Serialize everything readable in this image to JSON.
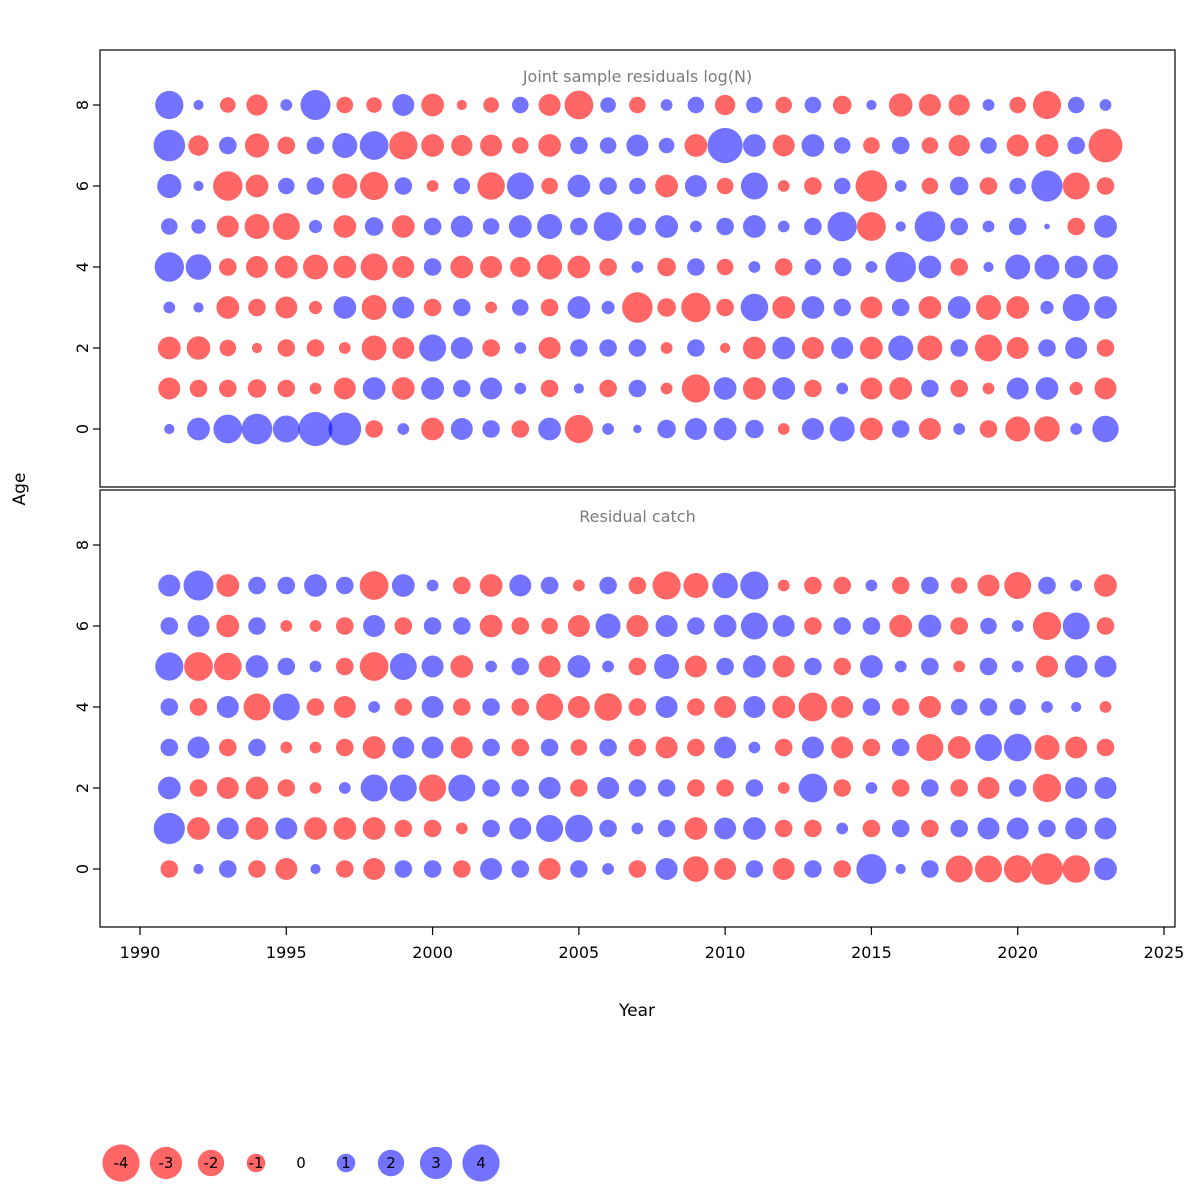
{
  "figure": {
    "xlabel": "Year",
    "ylabel": "Age",
    "x_ticks": [
      1990,
      1995,
      2000,
      2005,
      2010,
      2015,
      2020,
      2025
    ],
    "y_ticks": [
      0,
      2,
      4,
      6,
      8
    ],
    "legend_values": [
      -4,
      -3,
      -2,
      -1,
      0,
      1,
      2,
      3,
      4
    ],
    "colors": {
      "negative": "#ff0000",
      "positive": "#0000ff",
      "negative_opacity": 0.6,
      "positive_opacity": 0.55,
      "title_color": "#7c7c7c",
      "axis_color": "#000000"
    }
  },
  "chart_data": [
    {
      "type": "scatter",
      "subtype": "bubble-residuals",
      "title": "Joint sample residuals log(N)",
      "xlabel": "Year",
      "ylabel": "Age",
      "xlim": [
        1988.6,
        2025.4
      ],
      "ylim": [
        -1.4,
        9.3
      ],
      "grid": false,
      "years": [
        1991,
        1992,
        1993,
        1994,
        1995,
        1996,
        1997,
        1998,
        1999,
        2000,
        2001,
        2002,
        2003,
        2004,
        2005,
        2006,
        2007,
        2008,
        2009,
        2010,
        2011,
        2012,
        2013,
        2014,
        2015,
        2016,
        2017,
        2018,
        2019,
        2020,
        2021,
        2022,
        2023
      ],
      "series": [
        {
          "age": 8,
          "values": [
            2.3,
            0.3,
            -0.7,
            -1.3,
            0.4,
            2.6,
            -0.8,
            -0.7,
            1.4,
            -1.5,
            -0.3,
            -0.7,
            0.8,
            -1.4,
            -2.4,
            0.7,
            -0.8,
            0.4,
            0.8,
            -1.2,
            0.8,
            -0.8,
            0.8,
            -1.0,
            0.3,
            -1.6,
            -1.4,
            -1.3,
            0.4,
            -0.8,
            -2.3,
            0.8,
            0.4
          ]
        },
        {
          "age": 7,
          "values": [
            2.9,
            -1.2,
            0.9,
            -1.7,
            -0.9,
            0.9,
            1.8,
            2.4,
            -2.3,
            -1.5,
            -1.3,
            -1.4,
            -0.8,
            -1.5,
            0.9,
            0.8,
            1.4,
            0.7,
            -1.5,
            3.6,
            1.5,
            -1.4,
            1.5,
            0.8,
            -0.8,
            0.9,
            -0.8,
            -1.3,
            0.8,
            -1.4,
            -1.5,
            0.9,
            -3.3
          ]
        },
        {
          "age": 6,
          "values": [
            1.7,
            0.3,
            -2.5,
            -1.5,
            0.8,
            0.9,
            -1.8,
            -2.3,
            0.9,
            -0.4,
            0.8,
            -2.2,
            2.1,
            -0.8,
            1.5,
            0.9,
            0.8,
            -1.5,
            1.4,
            -0.8,
            2.1,
            -0.4,
            -0.9,
            0.8,
            -2.9,
            0.4,
            -0.8,
            1.0,
            -0.9,
            0.8,
            2.8,
            -2.1,
            -0.9
          ]
        },
        {
          "age": 5,
          "values": [
            0.8,
            0.6,
            -1.4,
            -1.8,
            -2.1,
            0.5,
            -1.5,
            1.0,
            -1.5,
            0.9,
            1.4,
            0.8,
            1.5,
            1.8,
            0.9,
            2.4,
            0.9,
            1.5,
            0.4,
            0.9,
            1.5,
            0.4,
            0.9,
            2.5,
            -2.4,
            0.3,
            2.7,
            0.9,
            0.4,
            0.9,
            0.1,
            -0.9,
            1.5
          ]
        },
        {
          "age": 4,
          "values": [
            2.5,
            1.9,
            -0.9,
            -1.4,
            -1.5,
            -1.8,
            -1.5,
            -2.1,
            -1.4,
            0.9,
            -1.5,
            -1.4,
            -1.2,
            -1.8,
            -1.5,
            -0.9,
            0.4,
            -1.0,
            0.9,
            -0.8,
            0.4,
            -0.9,
            0.8,
            1.0,
            0.4,
            2.7,
            1.5,
            -0.9,
            0.3,
            1.8,
            1.8,
            1.5,
            1.8
          ]
        },
        {
          "age": 3,
          "values": [
            0.4,
            0.3,
            -1.5,
            -0.9,
            -1.4,
            -0.5,
            1.5,
            -1.8,
            1.4,
            -0.9,
            0.9,
            -0.4,
            0.8,
            -0.9,
            1.5,
            0.5,
            -2.7,
            -1.0,
            -2.5,
            -0.9,
            2.2,
            -1.5,
            1.5,
            0.9,
            -1.4,
            0.9,
            -1.5,
            1.5,
            -1.8,
            -1.5,
            0.5,
            2.1,
            1.5
          ]
        },
        {
          "age": 2,
          "values": [
            -1.5,
            -1.6,
            -0.8,
            -0.3,
            -0.9,
            -0.9,
            -0.4,
            -1.8,
            -1.4,
            2.1,
            1.4,
            -0.9,
            0.4,
            -1.4,
            0.9,
            0.9,
            0.9,
            -0.4,
            0.9,
            -0.3,
            -1.5,
            1.5,
            -1.4,
            1.4,
            -1.5,
            1.8,
            -1.8,
            0.9,
            -2.1,
            -1.4,
            0.9,
            1.4,
            -0.9
          ]
        },
        {
          "age": 1,
          "values": [
            -1.4,
            -0.9,
            -0.9,
            -1.0,
            -0.9,
            -0.4,
            -1.4,
            1.5,
            -1.5,
            1.5,
            0.9,
            1.4,
            0.4,
            -0.9,
            0.3,
            -0.9,
            0.9,
            -0.4,
            -2.3,
            1.5,
            -1.5,
            1.5,
            -0.9,
            0.4,
            -1.4,
            -1.5,
            0.9,
            -0.9,
            -0.4,
            1.4,
            1.5,
            -0.5,
            -1.4
          ]
        },
        {
          "age": 0,
          "values": [
            0.3,
            1.5,
            2.4,
            2.7,
            2.1,
            3.4,
            3.1,
            -0.9,
            0.4,
            -1.5,
            1.4,
            0.9,
            -0.9,
            1.5,
            -2.3,
            0.4,
            0.2,
            1.0,
            1.4,
            1.5,
            1.0,
            -0.4,
            1.4,
            1.8,
            -1.5,
            0.9,
            -1.4,
            0.4,
            -0.9,
            -1.8,
            -1.9,
            0.4,
            2.0
          ]
        }
      ]
    },
    {
      "type": "scatter",
      "subtype": "bubble-residuals",
      "title": "Residual catch",
      "xlabel": "Year",
      "ylabel": "Age",
      "xlim": [
        1988.6,
        2025.4
      ],
      "ylim": [
        -1.4,
        9.3
      ],
      "grid": false,
      "years": [
        1991,
        1992,
        1993,
        1994,
        1995,
        1996,
        1997,
        1998,
        1999,
        2000,
        2001,
        2002,
        2003,
        2004,
        2005,
        2006,
        2007,
        2008,
        2009,
        2010,
        2011,
        2012,
        2013,
        2014,
        2015,
        2016,
        2017,
        2018,
        2019,
        2020,
        2021,
        2022,
        2023
      ],
      "series": [
        {
          "age": 7,
          "values": [
            1.4,
            2.6,
            -1.5,
            0.9,
            0.9,
            1.5,
            0.9,
            -2.4,
            1.5,
            0.4,
            -0.9,
            -1.5,
            1.4,
            0.9,
            -0.4,
            0.9,
            -0.9,
            -2.3,
            -1.8,
            1.9,
            2.3,
            -0.4,
            -0.9,
            -0.9,
            0.4,
            -0.9,
            0.9,
            -0.8,
            -1.4,
            -2.1,
            0.9,
            0.4,
            -1.5
          ]
        },
        {
          "age": 6,
          "values": [
            0.9,
            1.4,
            -1.5,
            0.9,
            -0.4,
            -0.4,
            -0.9,
            1.4,
            -0.9,
            0.9,
            0.9,
            -1.5,
            -0.9,
            -0.8,
            -1.4,
            1.8,
            -1.4,
            1.4,
            0.9,
            1.5,
            2.1,
            1.4,
            -0.9,
            0.9,
            0.9,
            -1.5,
            1.5,
            -0.9,
            0.8,
            0.4,
            -2.3,
            2.1,
            -0.9
          ]
        },
        {
          "age": 5,
          "values": [
            2.3,
            -2.4,
            -2.2,
            1.5,
            0.9,
            0.4,
            -0.9,
            -2.4,
            2.1,
            1.4,
            -1.5,
            0.4,
            0.9,
            -1.4,
            1.5,
            0.4,
            -0.9,
            1.8,
            -1.4,
            0.9,
            1.5,
            -1.4,
            0.9,
            -0.9,
            1.5,
            0.4,
            0.9,
            -0.4,
            0.9,
            0.4,
            -1.4,
            1.5,
            1.4
          ]
        },
        {
          "age": 4,
          "values": [
            0.9,
            -0.9,
            1.4,
            -2.1,
            2.1,
            -0.9,
            -1.4,
            0.4,
            -0.9,
            1.4,
            -0.9,
            0.9,
            -0.9,
            -2.1,
            -1.4,
            -2.2,
            -0.9,
            1.4,
            -0.9,
            -1.4,
            1.4,
            -1.5,
            -2.4,
            -1.4,
            0.9,
            -0.9,
            -1.4,
            0.8,
            0.9,
            0.8,
            0.4,
            0.3,
            -0.4
          ]
        },
        {
          "age": 3,
          "values": [
            0.9,
            1.4,
            -0.9,
            0.9,
            -0.4,
            -0.4,
            -0.9,
            -1.5,
            1.4,
            1.4,
            -1.4,
            0.9,
            -0.9,
            0.9,
            -0.8,
            0.9,
            -0.9,
            -1.4,
            -0.9,
            1.4,
            0.4,
            -0.9,
            1.4,
            -1.4,
            -0.9,
            0.9,
            -2.1,
            -1.5,
            2.1,
            2.2,
            -1.8,
            -1.4,
            -0.9
          ]
        },
        {
          "age": 2,
          "values": [
            1.5,
            -0.9,
            -1.4,
            -1.5,
            -0.9,
            -0.4,
            0.4,
            2.1,
            2.1,
            -2.1,
            2.1,
            0.9,
            0.9,
            1.4,
            -0.9,
            1.4,
            0.9,
            0.9,
            -0.9,
            -0.9,
            0.9,
            -0.4,
            2.4,
            -0.9,
            0.4,
            -0.9,
            0.9,
            -0.9,
            -1.4,
            0.9,
            -2.3,
            1.4,
            1.4
          ]
        },
        {
          "age": 1,
          "values": [
            2.8,
            -1.5,
            1.4,
            -1.5,
            1.4,
            -1.5,
            -1.5,
            -1.5,
            -0.9,
            -0.9,
            -0.4,
            0.9,
            1.4,
            2.1,
            2.2,
            0.9,
            0.4,
            0.9,
            -1.5,
            1.4,
            1.5,
            -0.9,
            -0.9,
            0.4,
            -0.9,
            0.9,
            -0.9,
            0.9,
            1.4,
            1.4,
            0.9,
            1.4,
            1.4
          ]
        },
        {
          "age": 0,
          "values": [
            -0.9,
            0.3,
            0.9,
            -0.9,
            -1.4,
            0.3,
            -0.9,
            -1.4,
            0.9,
            0.9,
            -0.9,
            1.4,
            0.9,
            -1.4,
            0.9,
            0.4,
            -0.9,
            1.4,
            -1.9,
            -1.4,
            0.9,
            -1.4,
            0.9,
            -0.9,
            2.6,
            0.3,
            0.9,
            -2.1,
            -2.1,
            -2.2,
            -2.9,
            -2.2,
            1.5
          ]
        }
      ]
    }
  ]
}
